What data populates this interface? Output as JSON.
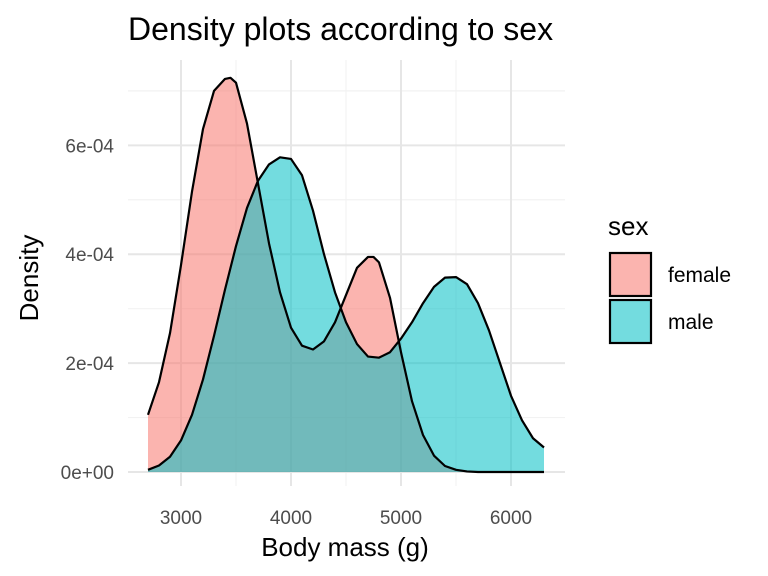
{
  "chart_data": {
    "type": "area",
    "title": "Density plots according to sex",
    "xlabel": "Body mass (g)",
    "ylabel": "Density",
    "xlim": [
      2700,
      6300
    ],
    "ylim": [
      0,
      0.00072
    ],
    "x_ticks": [
      3000,
      4000,
      5000,
      6000
    ],
    "x_tick_labels": [
      "3000",
      "4000",
      "5000",
      "6000"
    ],
    "y_ticks": [
      0,
      0.0002,
      0.0004,
      0.0006
    ],
    "y_tick_labels": [
      "0e+00",
      "2e-04",
      "4e-04",
      "6e-04"
    ],
    "grid": true,
    "legend": {
      "title": "sex",
      "position": "right"
    },
    "series": [
      {
        "name": "female",
        "color": "#F8766D",
        "x": [
          2700,
          2800,
          2900,
          3000,
          3100,
          3200,
          3300,
          3400,
          3450,
          3500,
          3600,
          3700,
          3800,
          3900,
          4000,
          4100,
          4200,
          4300,
          4400,
          4500,
          4600,
          4700,
          4750,
          4800,
          4900,
          5000,
          5100,
          5200,
          5300,
          5400,
          5500,
          5600,
          5700,
          5800,
          5900,
          6000,
          6100,
          6200,
          6300
        ],
        "values": [
          0.000105,
          0.000165,
          0.000255,
          0.00038,
          0.000515,
          0.00063,
          0.0007,
          0.000722,
          0.000724,
          0.000715,
          0.00064,
          0.00053,
          0.00042,
          0.00033,
          0.000265,
          0.000232,
          0.000225,
          0.00024,
          0.000275,
          0.000325,
          0.000375,
          0.000395,
          0.000395,
          0.000385,
          0.00032,
          0.00022,
          0.00013,
          6.8e-05,
          3e-05,
          1.1e-05,
          4e-06,
          1e-06,
          0.0,
          0.0,
          0.0,
          0.0,
          0.0,
          0.0,
          0.0
        ]
      },
      {
        "name": "male",
        "color": "#00BFC4",
        "x": [
          2700,
          2800,
          2900,
          3000,
          3100,
          3200,
          3300,
          3400,
          3500,
          3600,
          3700,
          3800,
          3900,
          4000,
          4100,
          4200,
          4300,
          4400,
          4500,
          4600,
          4700,
          4800,
          4900,
          5000,
          5100,
          5200,
          5300,
          5400,
          5500,
          5600,
          5700,
          5800,
          5900,
          6000,
          6100,
          6200,
          6300
        ],
        "values": [
          4e-06,
          1.2e-05,
          2.8e-05,
          5.8e-05,
          0.000105,
          0.00017,
          0.00025,
          0.000335,
          0.000415,
          0.000485,
          0.000535,
          0.000565,
          0.000578,
          0.000575,
          0.000545,
          0.00048,
          0.0004,
          0.00033,
          0.000275,
          0.000235,
          0.000212,
          0.00021,
          0.00022,
          0.000245,
          0.000275,
          0.00031,
          0.00034,
          0.000357,
          0.000358,
          0.000345,
          0.00031,
          0.00026,
          0.0002,
          0.00014,
          9.5e-05,
          6.2e-05,
          4.5e-05
        ]
      }
    ]
  }
}
